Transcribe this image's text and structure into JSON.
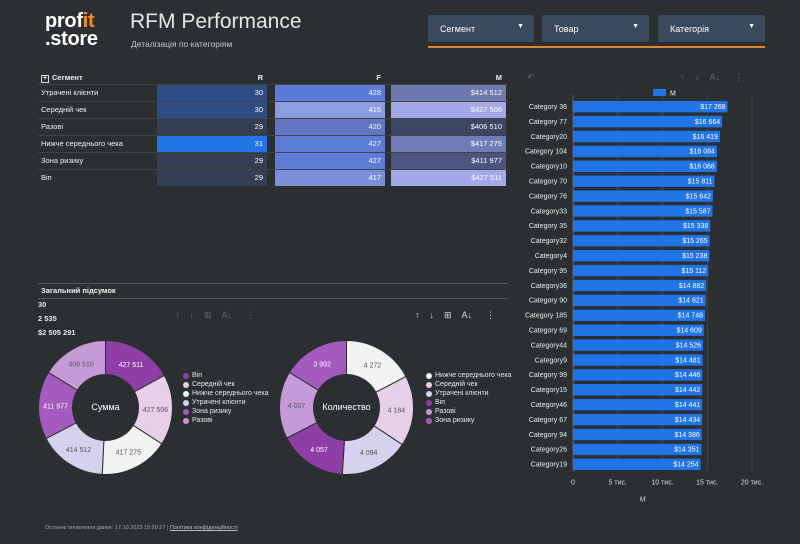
{
  "header": {
    "logo_line1_a": "prof",
    "logo_line1_b": "it",
    "logo_line2": ".store",
    "title": "RFM Performance",
    "subtitle": "Деталізація по категоріям"
  },
  "filters": [
    {
      "label": "Сегмент"
    },
    {
      "label": "Товар"
    },
    {
      "label": "Категорія"
    }
  ],
  "rfm_table": {
    "headers": {
      "segment": "Сегмент",
      "r": "R",
      "f": "F",
      "m": "M"
    },
    "rows": [
      {
        "segment": "Утрачені клієнти",
        "r": "30",
        "f": "428",
        "m": "$414 512",
        "rc": "#2e4d82",
        "fc": "#5a7bd8",
        "mc": "#6e79b0"
      },
      {
        "segment": "Середній чек",
        "r": "30",
        "f": "415",
        "m": "$427 506",
        "rc": "#2e4d82",
        "fc": "#8a9ee0",
        "mc": "#a3a8e6"
      },
      {
        "segment": "Разові",
        "r": "29",
        "f": "420",
        "m": "$406 510",
        "rc": "#333e52",
        "fc": "#6177c2",
        "mc": "#3b4564"
      },
      {
        "segment": "Нижче середнього чека",
        "r": "31",
        "f": "427",
        "m": "$417 275",
        "rc": "#2174e8",
        "fc": "#5d7cd6",
        "mc": "#6f7cb6"
      },
      {
        "segment": "Зона ризику",
        "r": "29",
        "f": "427",
        "m": "$411 977",
        "rc": "#333e52",
        "fc": "#5d7cd6",
        "mc": "#4b5580"
      },
      {
        "segment": "Віп",
        "r": "29",
        "f": "417",
        "m": "$427 511",
        "rc": "#333e52",
        "fc": "#7b8fd8",
        "mc": "#a3a8e6"
      }
    ],
    "total": {
      "label": "Загальний підсумок",
      "r": "30",
      "f": "2 535",
      "m": "$2 505 291"
    }
  },
  "donut_sum": {
    "title": "Сумма",
    "slices": [
      {
        "label": "Віп",
        "value": 427511,
        "text": "427 511",
        "color": "#8e3fa6"
      },
      {
        "label": "Середній чек",
        "value": 427506,
        "text": "427 506",
        "color": "#e8cfe9"
      },
      {
        "label": "Нижче середнього чека",
        "value": 417275,
        "text": "417 275",
        "color": "#f2f2f2"
      },
      {
        "label": "Утрачені клієнти",
        "value": 414512,
        "text": "414 512",
        "color": "#d6d1ee"
      },
      {
        "label": "Зона ризику",
        "value": 411977,
        "text": "411 977",
        "color": "#a55bbd"
      },
      {
        "label": "Разові",
        "value": 406510,
        "text": "406 510",
        "color": "#c69ad6"
      }
    ]
  },
  "donut_count": {
    "title": "Количество",
    "slices": [
      {
        "label": "Нижче середнього чека",
        "value": 4272,
        "text": "4 272",
        "color": "#f2f2f2"
      },
      {
        "label": "Середній чек",
        "value": 4184,
        "text": "4 184",
        "color": "#e8cfe9"
      },
      {
        "label": "Утрачені клієнти",
        "value": 4094,
        "text": "4 094",
        "color": "#d6d1ee"
      },
      {
        "label": "Віп",
        "value": 4057,
        "text": "4 057",
        "color": "#8e3fa6"
      },
      {
        "label": "Разові",
        "value": 4007,
        "text": "4 007",
        "color": "#c69ad6"
      },
      {
        "label": "Зона ризику",
        "value": 3992,
        "text": "3 992",
        "color": "#a55bbd"
      }
    ]
  },
  "chart_data": {
    "type": "bar",
    "orientation": "horizontal",
    "legend": "M",
    "xlabel": "M",
    "xlim": [
      0,
      20000
    ],
    "ticks": [
      "0",
      "5 тис.",
      "10 тис.",
      "15 тис.",
      "20 тис."
    ],
    "bar_color": "#2174e8",
    "categories": [
      "Category 36",
      "Category 77",
      "Category20",
      "Category 104",
      "Category10",
      "Category 70",
      "Category 76",
      "Category33",
      "Category 35",
      "Category32",
      "Category4",
      "Category 95",
      "Category36",
      "Category 90",
      "Category 185",
      "Category 69",
      "Category44",
      "Category9",
      "Category 99",
      "Category15",
      "Category46",
      "Category 67",
      "Category 94",
      "Category26",
      "Category19"
    ],
    "values": [
      17268,
      16664,
      16419,
      16084,
      16068,
      15811,
      15642,
      15587,
      15338,
      15265,
      15238,
      15112,
      14882,
      14821,
      14748,
      14609,
      14526,
      14481,
      14446,
      14442,
      14441,
      14434,
      14386,
      14351,
      14254
    ],
    "value_labels": [
      "$17 268",
      "$16 664",
      "$16 419",
      "$16 084",
      "$16 068",
      "$15 811",
      "$15 642",
      "$15 587",
      "$15 338",
      "$15 265",
      "$15 238",
      "$15 112",
      "$14 882",
      "$14 821",
      "$14 748",
      "$14 609",
      "$14 526",
      "$14 481",
      "$14 446",
      "$14 442",
      "$14 441",
      "$14 434",
      "$14 386",
      "$14 351",
      "$14 254"
    ]
  },
  "footer": {
    "updated": "Останнє оновлення даних: 17.10.2023 15:20:27",
    "separator": "|",
    "privacy": "Політика конфіденційності"
  }
}
